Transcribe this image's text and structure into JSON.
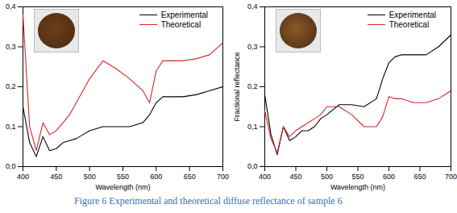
{
  "chart_data": [
    {
      "type": "line",
      "x_label": "Wavelength (nm)",
      "x": [
        400,
        410,
        420,
        430,
        440,
        450,
        460,
        470,
        480,
        490,
        500,
        520,
        540,
        560,
        580,
        590,
        600,
        610,
        620,
        640,
        660,
        680,
        700
      ],
      "series": [
        {
          "name": "Experimental",
          "color": "#000000",
          "values": [
            0.15,
            0.06,
            0.025,
            0.075,
            0.04,
            0.045,
            0.06,
            0.065,
            0.07,
            0.08,
            0.09,
            0.1,
            0.1,
            0.1,
            0.11,
            0.13,
            0.16,
            0.175,
            0.175,
            0.175,
            0.18,
            0.19,
            0.2
          ]
        },
        {
          "name": "Theoretical",
          "color": "#d62728",
          "values": [
            0.38,
            0.1,
            0.04,
            0.11,
            0.08,
            0.09,
            0.11,
            0.13,
            0.16,
            0.19,
            0.22,
            0.265,
            0.245,
            0.22,
            0.19,
            0.16,
            0.24,
            0.265,
            0.265,
            0.265,
            0.27,
            0.28,
            0.31
          ]
        }
      ],
      "xlim": [
        400,
        700
      ],
      "xticks": [
        400,
        450,
        500,
        550,
        600,
        650,
        700
      ],
      "ylim": [
        0,
        0.4
      ],
      "yticks": [
        {
          "value": 0,
          "label": "0,0"
        },
        {
          "value": 0.1,
          "label": "0,1"
        },
        {
          "value": 0.2,
          "label": "0,2"
        },
        {
          "value": 0.3,
          "label": "0,3"
        },
        {
          "value": 0.4,
          "label": "0,4"
        }
      ],
      "legend": "top-right"
    },
    {
      "type": "line",
      "x_label": "Wavelength (nm)",
      "y_label": "Fractional reflectance",
      "x": [
        400,
        410,
        420,
        430,
        440,
        450,
        460,
        470,
        480,
        490,
        500,
        520,
        540,
        560,
        580,
        590,
        600,
        610,
        620,
        640,
        660,
        680,
        700
      ],
      "series": [
        {
          "name": "Experimental",
          "color": "#000000",
          "values": [
            0.18,
            0.08,
            0.03,
            0.1,
            0.065,
            0.075,
            0.09,
            0.09,
            0.1,
            0.12,
            0.13,
            0.155,
            0.155,
            0.15,
            0.17,
            0.22,
            0.26,
            0.275,
            0.28,
            0.28,
            0.28,
            0.3,
            0.33
          ]
        },
        {
          "name": "Theoretical",
          "color": "#d62728",
          "values": [
            0.14,
            0.07,
            0.035,
            0.1,
            0.075,
            0.09,
            0.1,
            0.11,
            0.12,
            0.13,
            0.15,
            0.15,
            0.13,
            0.1,
            0.1,
            0.125,
            0.175,
            0.17,
            0.17,
            0.16,
            0.16,
            0.17,
            0.19
          ]
        }
      ],
      "xlim": [
        400,
        700
      ],
      "xticks": [
        400,
        450,
        500,
        550,
        600,
        650,
        700
      ],
      "ylim": [
        0,
        0.4
      ],
      "yticks": [
        {
          "value": 0,
          "label": "0,0"
        },
        {
          "value": 0.1,
          "label": "0,1"
        },
        {
          "value": 0.2,
          "label": "0,2"
        },
        {
          "value": 0.3,
          "label": "0,3"
        },
        {
          "value": 0.4,
          "label": "0,4"
        }
      ],
      "legend": "top-right"
    }
  ],
  "caption": "Figure 6  Experimental and theoretical diffuse reflectance of sample 6"
}
